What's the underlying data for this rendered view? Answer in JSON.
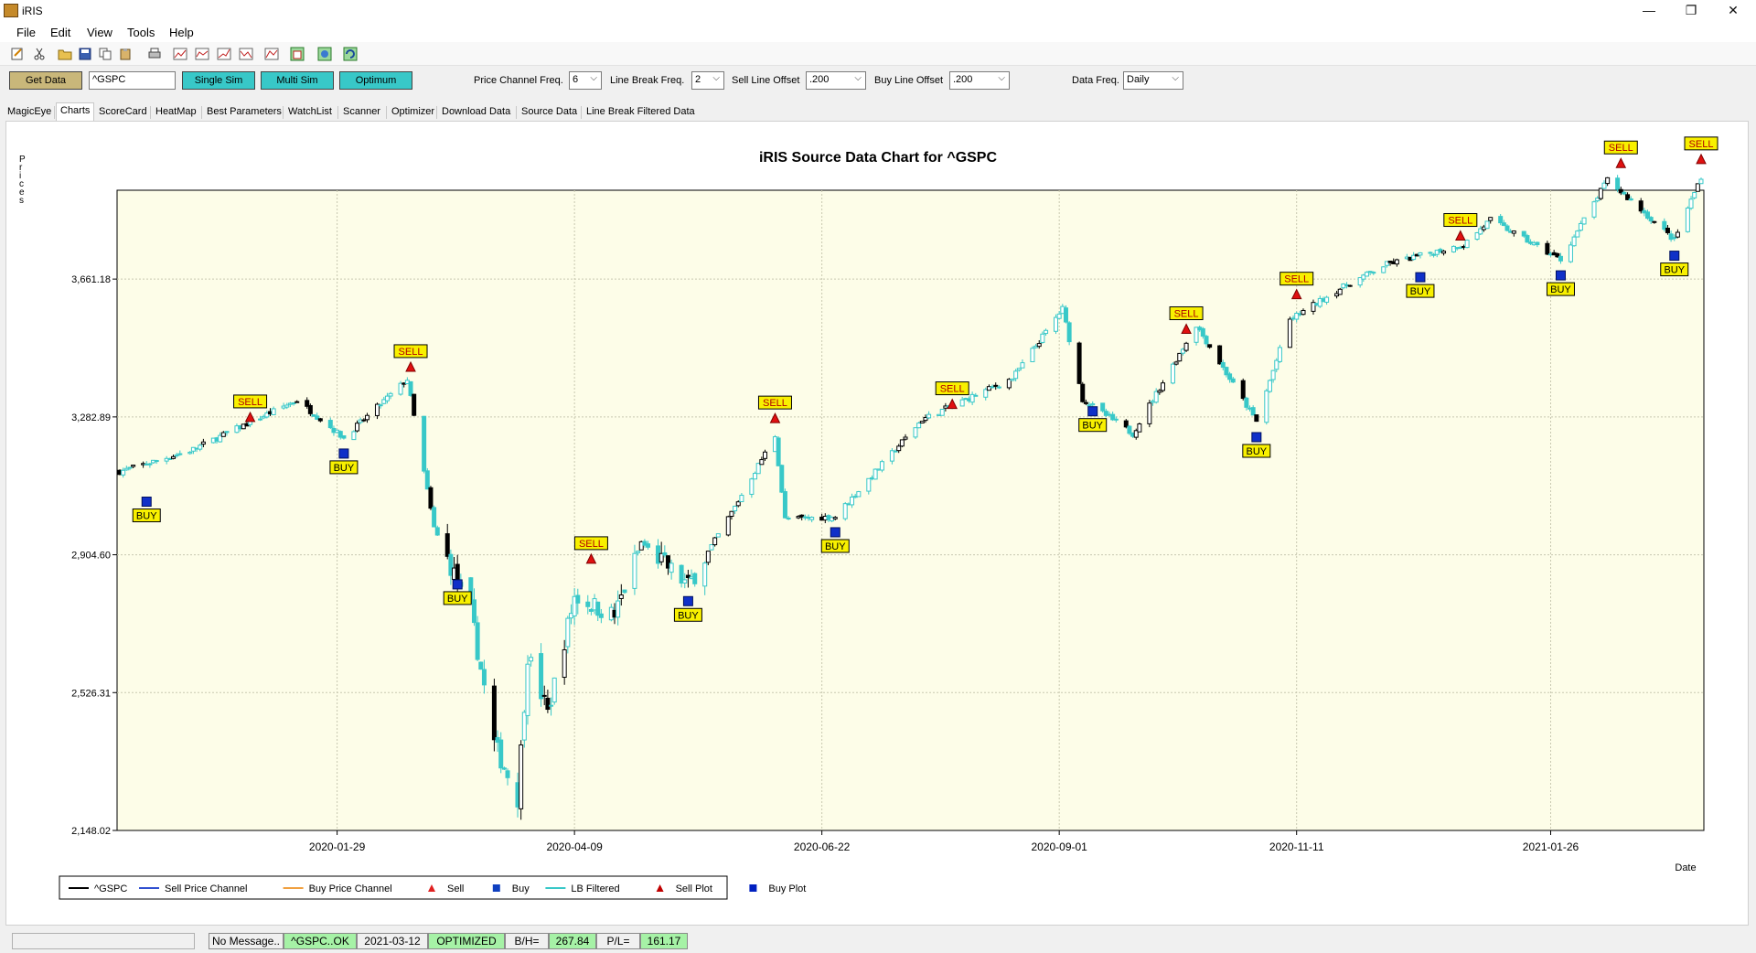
{
  "window": {
    "title": "iRIS",
    "minimize_glyph": "—",
    "maximize_glyph": "❐",
    "close_glyph": "✕"
  },
  "menu": [
    "File",
    "Edit",
    "View",
    "Tools",
    "Help"
  ],
  "toolbar_icons": [
    "new-icon",
    "cut-icon",
    "open-folder-icon",
    "save-icon",
    "copy-icon",
    "paste-icon",
    "print-icon",
    "chart-icon",
    "chart-line-icon",
    "chart-up-icon",
    "chart-down-icon",
    "chart-settings-icon",
    "export-icon",
    "record-icon",
    "refresh-icon"
  ],
  "controls": {
    "get_data": "Get Data",
    "symbol": "^GSPC",
    "single_sim": "Single Sim",
    "multi_sim": "Multi Sim",
    "optimum": "Optimum",
    "price_channel_label": "Price Channel Freq.",
    "price_channel_value": "6",
    "line_break_label": "Line Break Freq.",
    "line_break_value": "2",
    "sell_offset_label": "Sell Line Offset",
    "sell_offset_value": ".200",
    "buy_offset_label": "Buy Line Offset",
    "buy_offset_value": ".200",
    "data_freq_label": "Data Freq.",
    "data_freq_value": "Daily"
  },
  "tabs": [
    "MagicEye",
    "Charts",
    "ScoreCard",
    "HeatMap",
    "Best Parameters",
    "WatchList",
    "Scanner",
    "Optimizer",
    "Download Data",
    "Source Data",
    "Line Break Filtered Data"
  ],
  "active_tab": "Charts",
  "colors": {
    "accent_teal": "#38c8c8",
    "get_data_bg": "#c9b77a",
    "plot_bg": "#fdfde8",
    "sell_marker": "#e01010",
    "buy_marker": "#1030c8",
    "label_bg": "#f8f000",
    "status_green": "#a6f2a6"
  },
  "status": {
    "message": "No Message..",
    "symbol_status": "^GSPC..OK",
    "date": "2021-03-12",
    "state": "OPTIMIZED",
    "bh_label": "B/H=",
    "bh_value": "267.84",
    "pl_label": "P/L=",
    "pl_value": "161.17"
  },
  "chart_data": {
    "type": "candlestick",
    "title": "iRIS Source Data Chart for ^GSPC",
    "ylabel": "Prices",
    "xlabel": "Date",
    "ylim": [
      2148.02,
      3905
    ],
    "yticks": [
      2148.02,
      2526.31,
      2904.6,
      3282.89,
      3661.18
    ],
    "ytick_labels": [
      "2,148.02",
      "2,526.31",
      "2,904.60",
      "3,282.89",
      "3,661.18"
    ],
    "xticks": [
      "2020-01-29",
      "2020-04-09",
      "2020-06-22",
      "2020-09-01",
      "2020-11-11",
      "2021-01-26"
    ],
    "date_range": [
      "2019-11-25",
      "2021-03-12"
    ],
    "grid": true,
    "legend_position": "bottom-left",
    "legend": [
      {
        "name": "^GSPC",
        "kind": "line",
        "color": "#000000"
      },
      {
        "name": "Sell Price Channel",
        "kind": "line",
        "color": "#3050d0"
      },
      {
        "name": "Buy Price Channel",
        "kind": "line",
        "color": "#f0a040"
      },
      {
        "name": "Sell",
        "kind": "triangle",
        "color": "#e02020"
      },
      {
        "name": "Buy",
        "kind": "square",
        "color": "#1040c0"
      },
      {
        "name": "LB Filtered",
        "kind": "line",
        "color": "#38c8c8"
      },
      {
        "name": "Sell Plot",
        "kind": "triangle",
        "color": "#c00000"
      },
      {
        "name": "Buy Plot",
        "kind": "square",
        "color": "#0020c0"
      }
    ],
    "price_path": [
      {
        "date": "2019-11-25",
        "value": 3133
      },
      {
        "date": "2019-12-16",
        "value": 3190
      },
      {
        "date": "2020-01-17",
        "value": 3329
      },
      {
        "date": "2020-01-31",
        "value": 3225
      },
      {
        "date": "2020-02-19",
        "value": 3386
      },
      {
        "date": "2020-02-27",
        "value": 2978
      },
      {
        "date": "2020-03-09",
        "value": 2746
      },
      {
        "date": "2020-03-16",
        "value": 2386
      },
      {
        "date": "2020-03-23",
        "value": 2237
      },
      {
        "date": "2020-03-26",
        "value": 2630
      },
      {
        "date": "2020-04-01",
        "value": 2470
      },
      {
        "date": "2020-04-09",
        "value": 2790
      },
      {
        "date": "2020-04-21",
        "value": 2737
      },
      {
        "date": "2020-04-29",
        "value": 2939
      },
      {
        "date": "2020-05-13",
        "value": 2820
      },
      {
        "date": "2020-05-27",
        "value": 3036
      },
      {
        "date": "2020-06-08",
        "value": 3232
      },
      {
        "date": "2020-06-11",
        "value": 3002
      },
      {
        "date": "2020-06-26",
        "value": 3009
      },
      {
        "date": "2020-07-22",
        "value": 3276
      },
      {
        "date": "2020-08-18",
        "value": 3389
      },
      {
        "date": "2020-09-02",
        "value": 3580
      },
      {
        "date": "2020-09-08",
        "value": 3331
      },
      {
        "date": "2020-09-23",
        "value": 3237
      },
      {
        "date": "2020-10-12",
        "value": 3535
      },
      {
        "date": "2020-10-30",
        "value": 3270
      },
      {
        "date": "2020-11-09",
        "value": 3550
      },
      {
        "date": "2020-11-24",
        "value": 3635
      },
      {
        "date": "2020-12-08",
        "value": 3702
      },
      {
        "date": "2020-12-31",
        "value": 3756
      },
      {
        "date": "2021-01-08",
        "value": 3824
      },
      {
        "date": "2021-01-29",
        "value": 3714
      },
      {
        "date": "2021-02-12",
        "value": 3934
      },
      {
        "date": "2021-03-04",
        "value": 3768
      },
      {
        "date": "2021-03-12",
        "value": 3943
      }
    ],
    "signals": [
      {
        "type": "BUY",
        "date": "2019-12-03",
        "value": 3093
      },
      {
        "type": "SELL",
        "date": "2020-01-03",
        "value": 3235
      },
      {
        "type": "BUY",
        "date": "2020-01-31",
        "value": 3225
      },
      {
        "type": "SELL",
        "date": "2020-02-20",
        "value": 3373
      },
      {
        "type": "BUY",
        "date": "2020-03-05",
        "value": 2866
      },
      {
        "type": "SELL",
        "date": "2020-04-14",
        "value": 2846
      },
      {
        "type": "BUY",
        "date": "2020-05-13",
        "value": 2820
      },
      {
        "type": "SELL",
        "date": "2020-06-08",
        "value": 3232
      },
      {
        "type": "BUY",
        "date": "2020-06-26",
        "value": 3009
      },
      {
        "type": "SELL",
        "date": "2020-07-31",
        "value": 3271
      },
      {
        "type": "BUY",
        "date": "2020-09-11",
        "value": 3341
      },
      {
        "type": "SELL",
        "date": "2020-10-09",
        "value": 3477
      },
      {
        "type": "BUY",
        "date": "2020-10-30",
        "value": 3270
      },
      {
        "type": "SELL",
        "date": "2020-11-11",
        "value": 3572
      },
      {
        "type": "BUY",
        "date": "2020-12-18",
        "value": 3709
      },
      {
        "type": "SELL",
        "date": "2020-12-30",
        "value": 3733
      },
      {
        "type": "BUY",
        "date": "2021-01-29",
        "value": 3714
      },
      {
        "type": "SELL",
        "date": "2021-02-16",
        "value": 3932
      },
      {
        "type": "BUY",
        "date": "2021-03-04",
        "value": 3768
      },
      {
        "type": "SELL",
        "date": "2021-03-12",
        "value": 3943
      }
    ]
  }
}
